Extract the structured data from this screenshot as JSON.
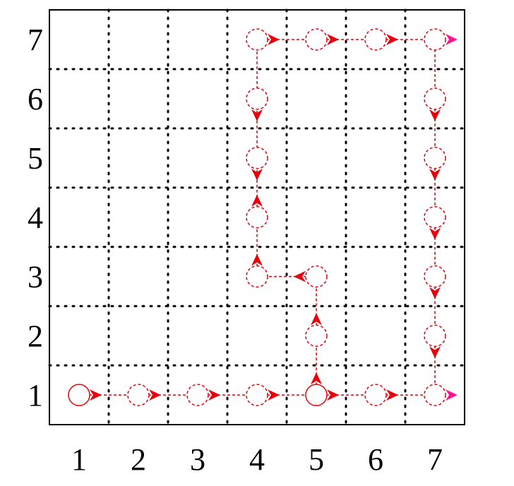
{
  "diagram": {
    "x_ticks": [
      "1",
      "2",
      "3",
      "4",
      "5",
      "6",
      "7"
    ],
    "y_ticks": [
      "1",
      "2",
      "3",
      "4",
      "5",
      "6",
      "7"
    ],
    "grid": {
      "cols": 7,
      "rows": 7,
      "line_style": "dotted"
    },
    "colors": {
      "path": "#e8000b",
      "terminal_arrow": "#ff1493",
      "grid": "#000000",
      "frame": "#000000"
    },
    "start_cell": [
      1,
      1
    ],
    "branch_cell": [
      5,
      1
    ],
    "path": [
      {
        "cell": [
          1,
          1
        ],
        "dir": "right"
      },
      {
        "cell": [
          2,
          1
        ],
        "dir": "right"
      },
      {
        "cell": [
          3,
          1
        ],
        "dir": "right"
      },
      {
        "cell": [
          4,
          1
        ],
        "dir": "right"
      },
      {
        "cell": [
          5,
          1
        ],
        "dir": "right"
      },
      {
        "cell": [
          6,
          1
        ],
        "dir": "right"
      },
      {
        "cell": [
          7,
          1
        ],
        "dir": "right",
        "terminal": true
      },
      {
        "cell": [
          5,
          1
        ],
        "dir": "up"
      },
      {
        "cell": [
          5,
          2
        ],
        "dir": "up"
      },
      {
        "cell": [
          5,
          3
        ],
        "dir": "left"
      },
      {
        "cell": [
          4,
          3
        ],
        "dir": "up"
      },
      {
        "cell": [
          4,
          4
        ],
        "dir": "up"
      },
      {
        "cell": [
          4,
          5
        ],
        "dir": "down"
      },
      {
        "cell": [
          4,
          6
        ],
        "dir": "down"
      },
      {
        "cell": [
          4,
          7
        ],
        "dir": "right"
      },
      {
        "cell": [
          5,
          7
        ],
        "dir": "right"
      },
      {
        "cell": [
          6,
          7
        ],
        "dir": "right"
      },
      {
        "cell": [
          7,
          7
        ],
        "dir": "right",
        "terminal": true
      },
      {
        "cell": [
          7,
          6
        ],
        "dir": "down"
      },
      {
        "cell": [
          7,
          5
        ],
        "dir": "down"
      },
      {
        "cell": [
          7,
          4
        ],
        "dir": "down"
      },
      {
        "cell": [
          7,
          3
        ],
        "dir": "down"
      },
      {
        "cell": [
          7,
          2
        ],
        "dir": "down"
      }
    ],
    "segments": [
      [
        [
          1,
          1
        ],
        [
          7,
          1
        ]
      ],
      [
        [
          5,
          1
        ],
        [
          5,
          3
        ]
      ],
      [
        [
          5,
          3
        ],
        [
          4,
          3
        ]
      ],
      [
        [
          4,
          3
        ],
        [
          4,
          7
        ]
      ],
      [
        [
          4,
          7
        ],
        [
          7,
          7
        ]
      ],
      [
        [
          7,
          7
        ],
        [
          7,
          1
        ]
      ]
    ]
  }
}
